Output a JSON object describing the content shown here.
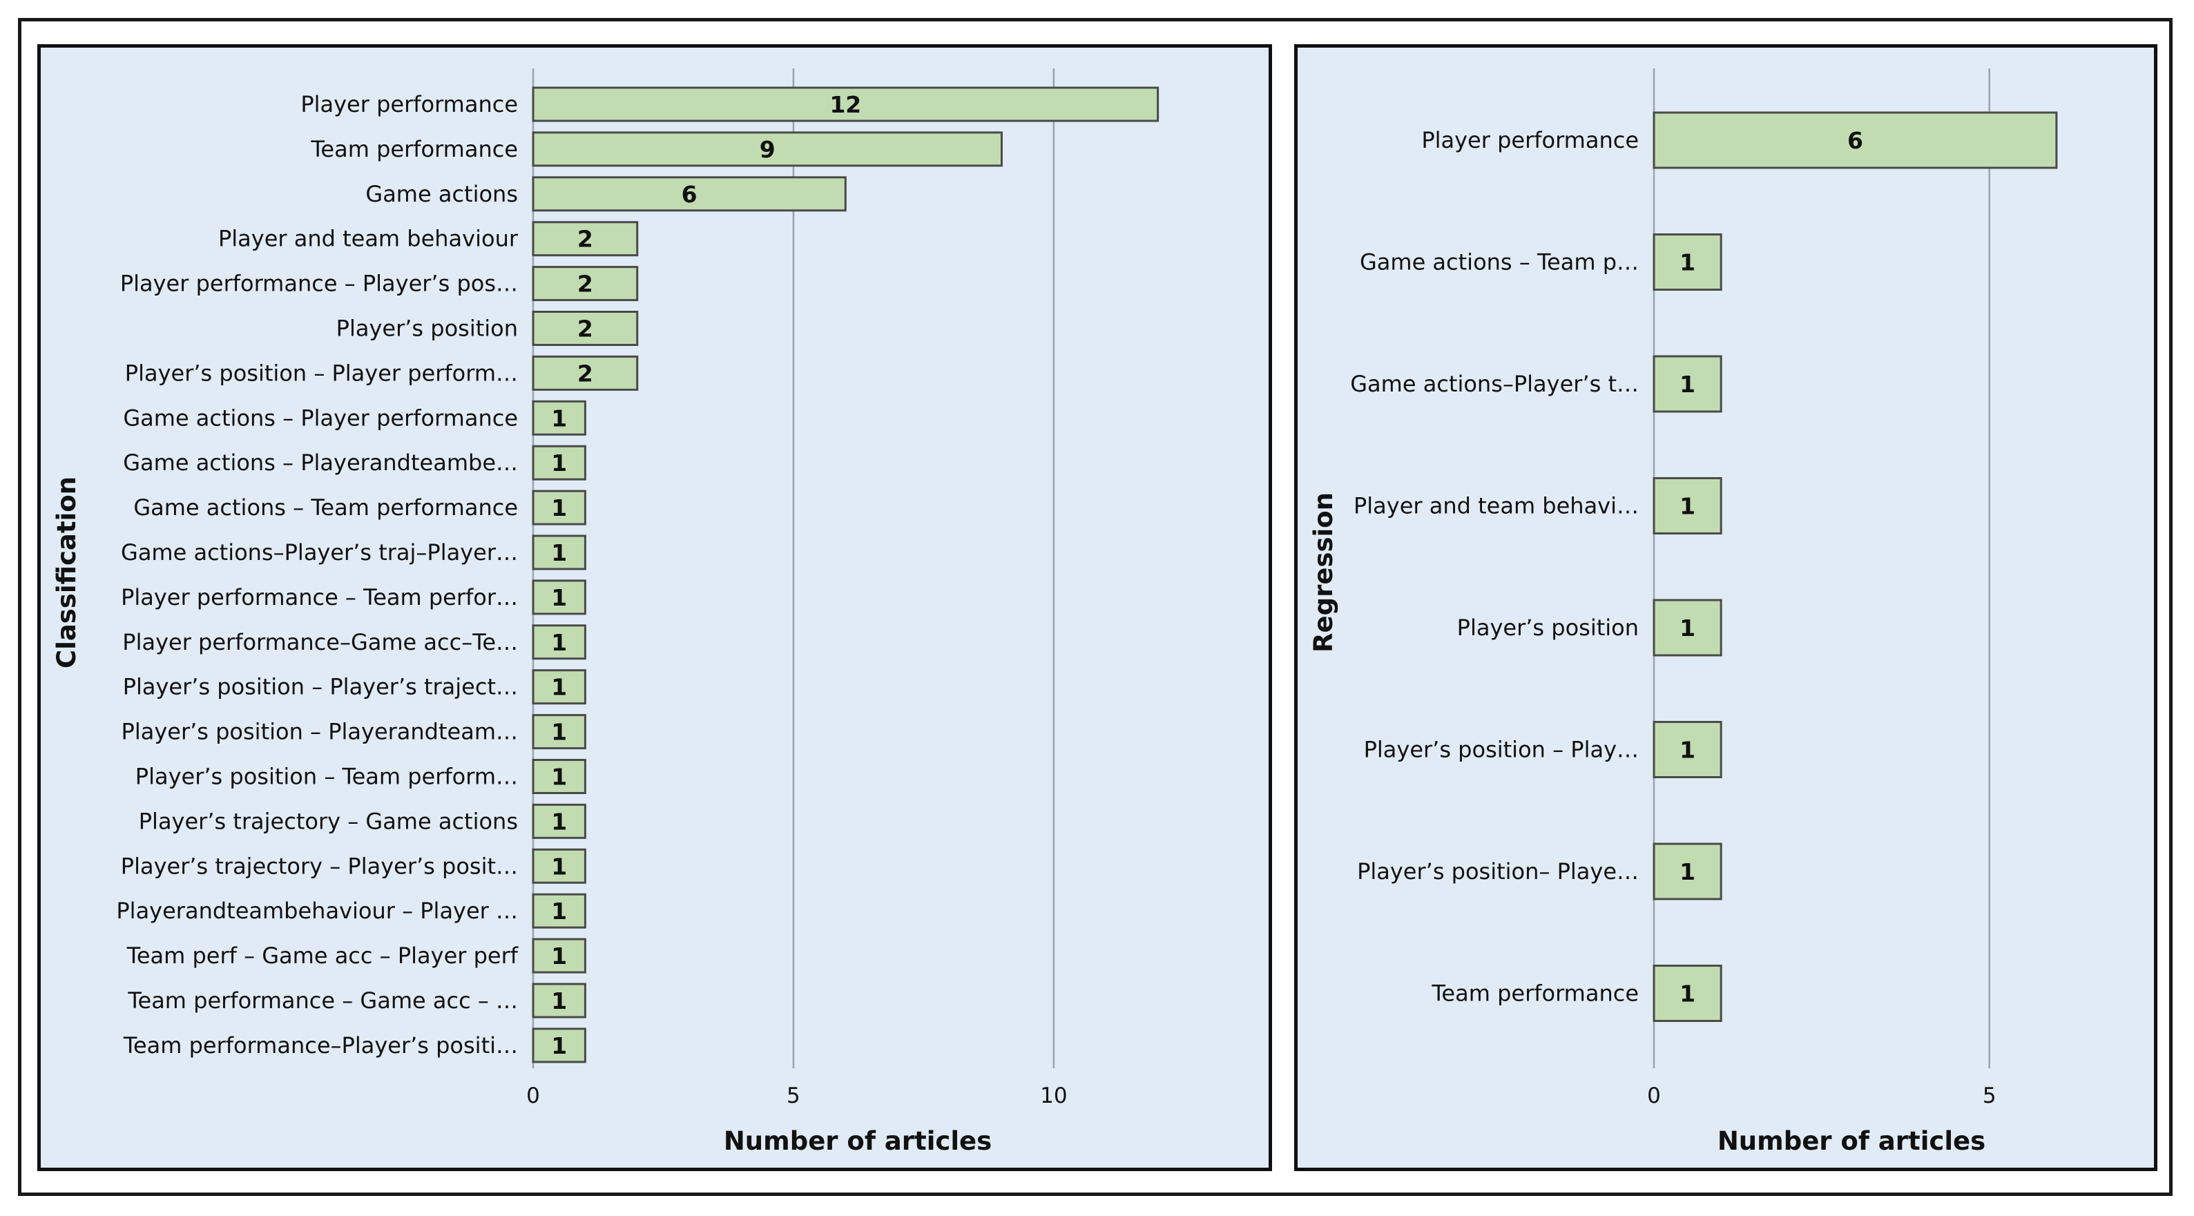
{
  "chart_data": [
    {
      "type": "bar",
      "orientation": "horizontal",
      "title": "",
      "panel_label": "Classification",
      "xlabel": "Number of articles",
      "xlim": [
        0,
        13
      ],
      "xticks": [
        0,
        5,
        10
      ],
      "grid": true,
      "bar_color": "#c2dcb1",
      "categories": [
        "Player performance",
        "Team performance",
        "Game actions",
        "Player and team behaviour",
        "Player performance – Player’s pos…",
        "Player’s position",
        "Player’s position – Player perform…",
        "Game actions – Player performance",
        "Game actions – Playerandteambe…",
        "Game actions – Team performance",
        "Game actions–Player’s traj–Player…",
        "Player performance – Team perfor…",
        "Player performance–Game acc–Te…",
        "Player’s position – Player’s traject…",
        "Player’s position – Playerandteam…",
        "Player’s position – Team perform…",
        "Player’s trajectory – Game actions",
        "Player’s trajectory – Player’s posit…",
        "Playerandteambehaviour – Player …",
        "Team perf – Game acc – Player perf",
        "Team performance – Game acc – …",
        "Team performance–Player’s positi…"
      ],
      "values": [
        12,
        9,
        6,
        2,
        2,
        2,
        2,
        1,
        1,
        1,
        1,
        1,
        1,
        1,
        1,
        1,
        1,
        1,
        1,
        1,
        1,
        1
      ]
    },
    {
      "type": "bar",
      "orientation": "horizontal",
      "title": "",
      "panel_label": "Regression",
      "xlabel": "Number of articles",
      "xlim": [
        0,
        6.3
      ],
      "xticks": [
        0,
        5
      ],
      "grid": true,
      "bar_color": "#c2dcb1",
      "categories": [
        "Player performance",
        "Game actions – Team p…",
        "Game actions–Player’s t…",
        "Player and team behavi…",
        "Player’s position",
        "Player’s position – Play…",
        "Player’s position– Playe…",
        "Team performance"
      ],
      "values": [
        6,
        1,
        1,
        1,
        1,
        1,
        1,
        1
      ]
    }
  ]
}
